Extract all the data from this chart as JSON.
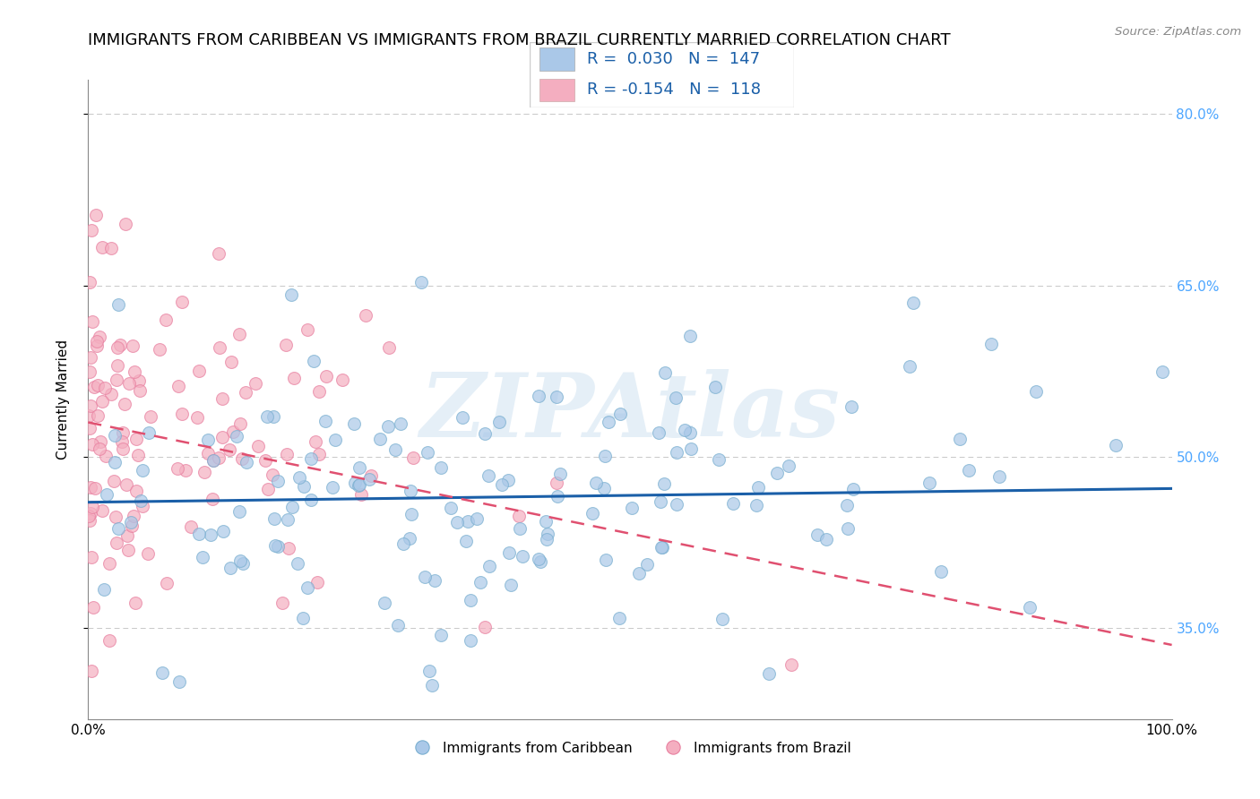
{
  "title": "IMMIGRANTS FROM CARIBBEAN VS IMMIGRANTS FROM BRAZIL CURRENTLY MARRIED CORRELATION CHART",
  "source": "Source: ZipAtlas.com",
  "ylabel": "Currently Married",
  "watermark": "ZIPAtlas",
  "xlim": [
    0.0,
    1.0
  ],
  "ylim": [
    0.27,
    0.83
  ],
  "ytick_positions": [
    0.35,
    0.5,
    0.65,
    0.8
  ],
  "ytick_labels": [
    "35.0%",
    "50.0%",
    "65.0%",
    "80.0%"
  ],
  "blue_color": "#aac8e8",
  "pink_color": "#f4aec0",
  "blue_edge_color": "#7aafd0",
  "pink_edge_color": "#e880a0",
  "blue_line_color": "#1a5fa8",
  "pink_line_color": "#e05070",
  "right_tick_color": "#4da6ff",
  "background_color": "#ffffff",
  "scatter_alpha": 0.7,
  "scatter_size": 100,
  "blue_R": 0.03,
  "blue_N": 147,
  "pink_R": -0.154,
  "pink_N": 118,
  "blue_intercept": 0.46,
  "blue_slope": 0.012,
  "pink_intercept": 0.53,
  "pink_slope": -0.195,
  "title_fontsize": 13,
  "axis_label_fontsize": 11,
  "tick_fontsize": 11,
  "legend_fontsize": 13,
  "seed": 42
}
